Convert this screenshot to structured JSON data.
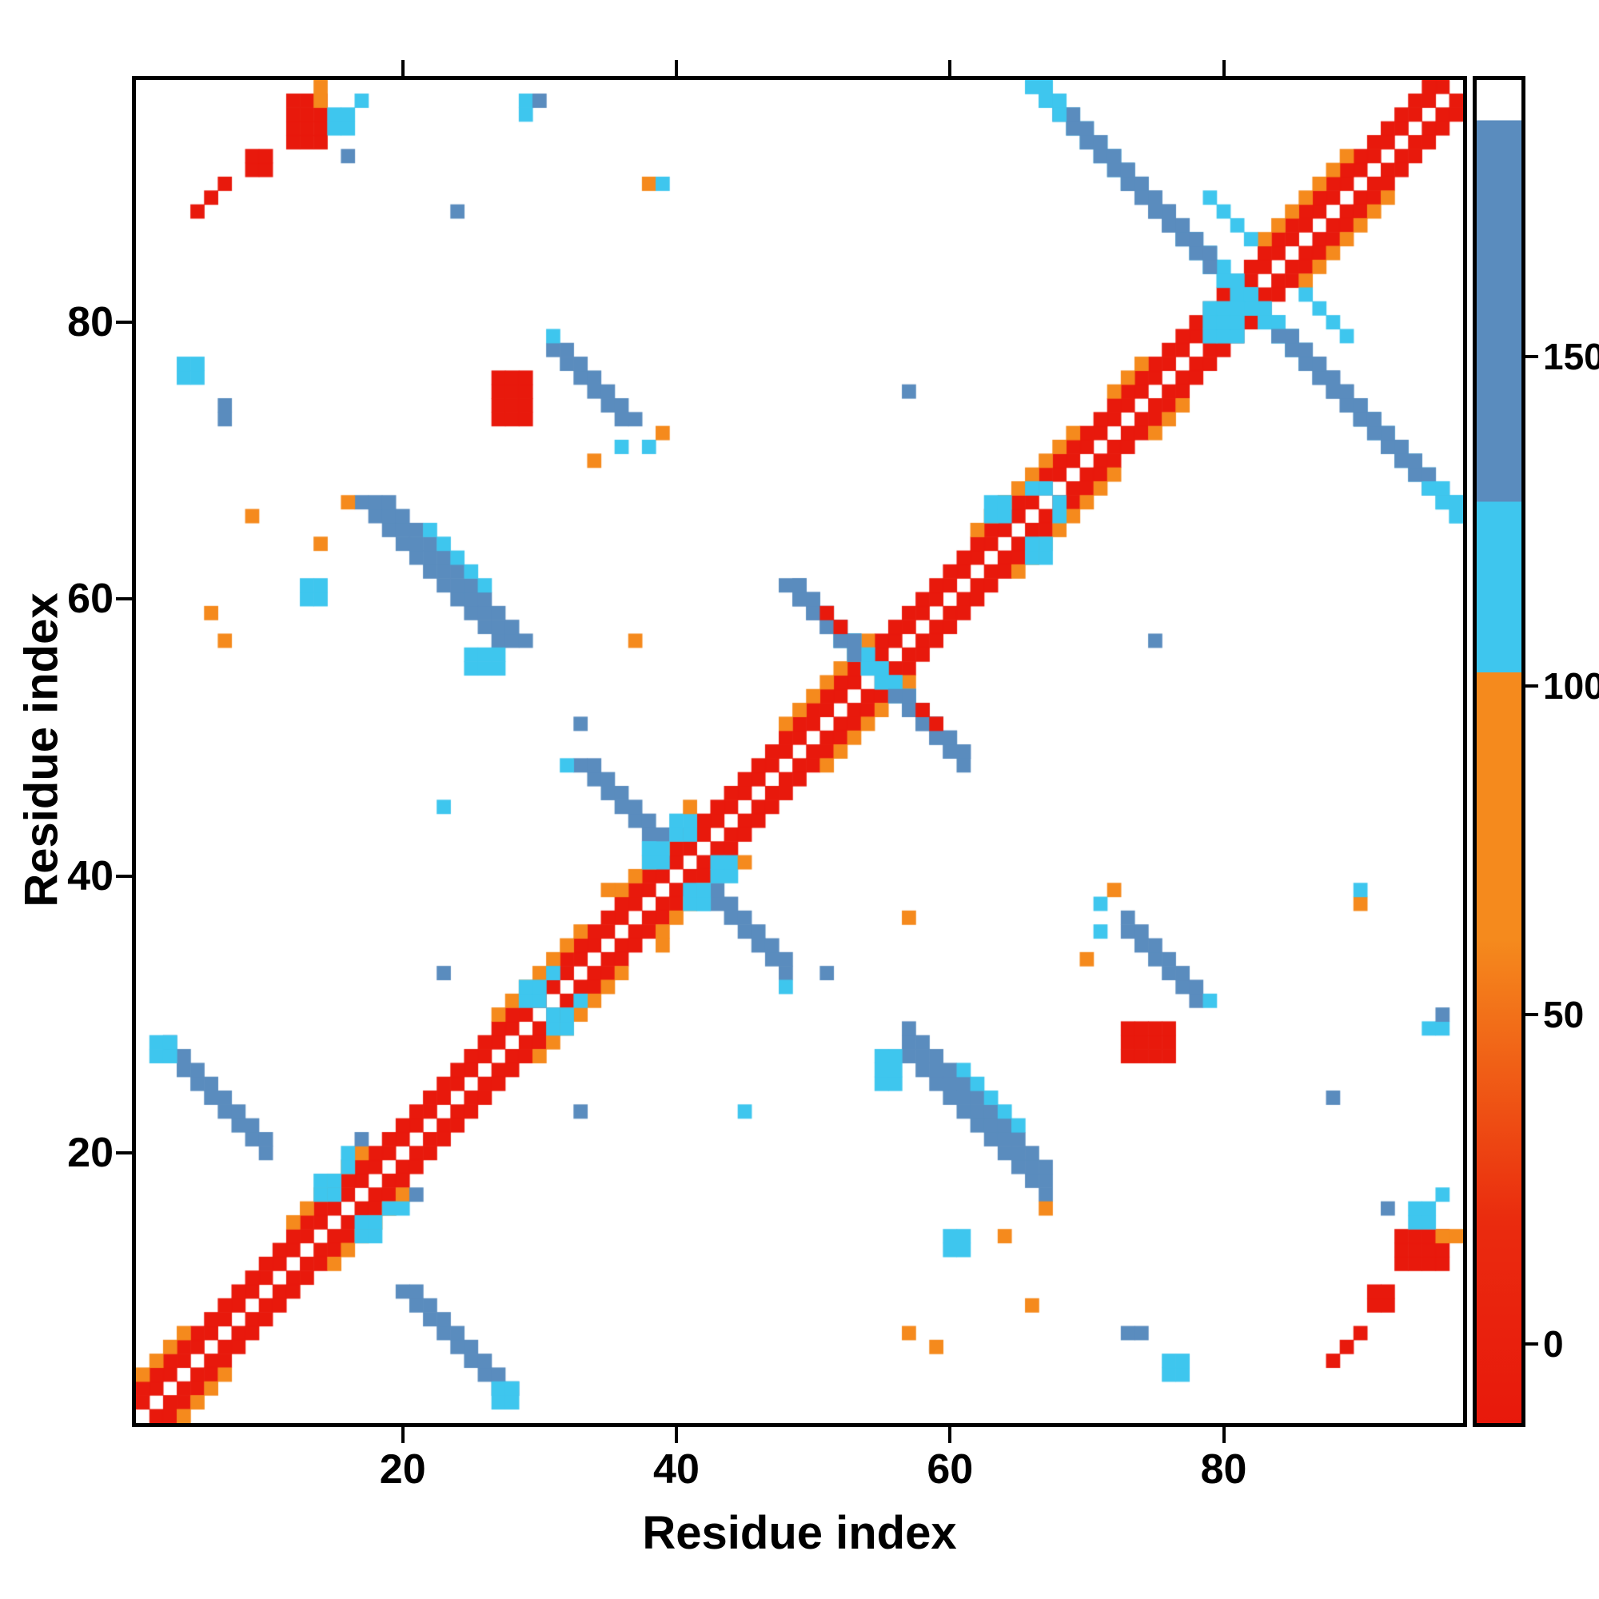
{
  "chart_data": {
    "type": "heatmap",
    "title": "",
    "xlabel": "Residue index",
    "ylabel": "Residue index",
    "x_range": [
      1,
      97
    ],
    "y_range": [
      1,
      97
    ],
    "x_ticks": [
      20,
      40,
      60,
      80
    ],
    "y_ticks": [
      20,
      40,
      60,
      80
    ],
    "grid": false,
    "symmetric": true,
    "background": "#ffffff",
    "palette": {
      "r": "#e8190c",
      "o": "#f58a1d",
      "c": "#3ec6ee",
      "b": "#5a8cbe"
    },
    "category_values": {
      "r": 10,
      "o": 60,
      "c": 112,
      "b": 150
    },
    "colorbar": {
      "min": -12,
      "max": 192,
      "ticks": [
        0,
        50,
        100,
        150
      ],
      "gradient_stops": [
        [
          "#e8190c",
          0
        ],
        [
          "#ea2b0e",
          15
        ],
        [
          "#f58a1d",
          36
        ],
        [
          "#f58a1d",
          55.9
        ],
        [
          "#3ec6ee",
          55.9
        ],
        [
          "#3ec6ee",
          68.6
        ],
        [
          "#5a8cbe",
          68.6
        ],
        [
          "#5a8cbe",
          97.0
        ],
        [
          "#ffffff",
          97.0
        ],
        [
          "#ffffff",
          100
        ]
      ]
    },
    "features": [
      {
        "t": "d",
        "x": 1,
        "y": 2,
        "l": 96,
        "c": "r"
      },
      {
        "t": "d",
        "x": 1,
        "y": 3,
        "l": 95,
        "c": "r"
      },
      {
        "t": "d",
        "x": 1,
        "y": 4,
        "l": 4,
        "c": "o"
      },
      {
        "t": "d",
        "x": 12,
        "y": 15,
        "l": 6,
        "c": "o"
      },
      {
        "t": "d",
        "x": 27,
        "y": 30,
        "l": 7,
        "c": "o"
      },
      {
        "t": "d",
        "x": 36,
        "y": 39,
        "l": 4,
        "c": "o"
      },
      {
        "t": "d",
        "x": 48,
        "y": 51,
        "l": 7,
        "c": "o"
      },
      {
        "t": "d",
        "x": 62,
        "y": 65,
        "l": 8,
        "c": "o"
      },
      {
        "t": "d",
        "x": 72,
        "y": 75,
        "l": 3,
        "c": "o"
      },
      {
        "t": "d",
        "x": 83,
        "y": 86,
        "l": 7,
        "c": "o"
      },
      {
        "t": "d",
        "x": 5,
        "y": 88,
        "l": 3,
        "c": "r"
      },
      {
        "t": "a",
        "x": 20,
        "y": 10,
        "l": 8,
        "n": 2,
        "c": "b"
      },
      {
        "t": "r",
        "x": 27,
        "y": 2,
        "w": 2,
        "h": 2,
        "c": "c"
      },
      {
        "t": "r",
        "x": 14,
        "y": 17,
        "w": 2,
        "h": 2,
        "c": "c"
      },
      {
        "t": "r",
        "x": 16,
        "y": 19,
        "w": 1,
        "h": 2,
        "c": "c"
      },
      {
        "t": "r",
        "x": 17,
        "y": 21,
        "w": 1,
        "h": 1,
        "c": "b"
      },
      {
        "t": "a",
        "x": 17,
        "y": 67,
        "l": 11,
        "n": 3,
        "c": "b"
      },
      {
        "t": "a",
        "x": 22,
        "y": 65,
        "l": 5,
        "n": 1,
        "c": "c"
      },
      {
        "t": "r",
        "x": 25,
        "y": 55,
        "w": 3,
        "h": 2,
        "c": "c"
      },
      {
        "t": "r",
        "x": 16,
        "y": 67,
        "w": 1,
        "h": 1,
        "c": "o"
      },
      {
        "t": "a",
        "x": 33,
        "y": 48,
        "l": 6,
        "n": 2,
        "c": "b"
      },
      {
        "t": "r",
        "x": 32,
        "y": 48,
        "w": 1,
        "h": 1,
        "c": "c"
      },
      {
        "t": "r",
        "x": 38,
        "y": 42,
        "w": 1,
        "h": 1,
        "c": "c"
      },
      {
        "t": "r",
        "x": 38,
        "y": 41,
        "w": 2,
        "h": 2,
        "c": "c"
      },
      {
        "t": "r",
        "x": 40,
        "y": 43,
        "w": 2,
        "h": 2,
        "c": "c"
      },
      {
        "t": "r",
        "x": 35,
        "y": 39,
        "w": 1,
        "h": 1,
        "c": "o"
      },
      {
        "t": "r",
        "x": 41,
        "y": 45,
        "w": 1,
        "h": 1,
        "c": "o"
      },
      {
        "t": "r",
        "x": 29,
        "y": 31,
        "w": 2,
        "h": 2,
        "c": "c"
      },
      {
        "t": "r",
        "x": 31,
        "y": 33,
        "w": 1,
        "h": 1,
        "c": "c"
      },
      {
        "t": "r",
        "x": 23,
        "y": 33,
        "w": 1,
        "h": 1,
        "c": "b"
      },
      {
        "t": "r",
        "x": 33,
        "y": 51,
        "w": 1,
        "h": 1,
        "c": "b"
      },
      {
        "t": "r",
        "x": 45,
        "y": 23,
        "w": 1,
        "h": 1,
        "c": "c"
      },
      {
        "t": "a",
        "x": 48,
        "y": 61,
        "l": 5,
        "n": 2,
        "c": "b"
      },
      {
        "t": "a",
        "x": 52,
        "y": 57,
        "l": 5,
        "n": 2,
        "c": "c"
      },
      {
        "t": "a",
        "x": 56,
        "y": 53,
        "l": 5,
        "n": 2,
        "c": "b"
      },
      {
        "t": "r",
        "x": 63,
        "y": 66,
        "w": 2,
        "h": 2,
        "c": "c"
      },
      {
        "t": "r",
        "x": 66,
        "y": 68,
        "w": 2,
        "h": 1,
        "c": "c"
      },
      {
        "t": "r",
        "x": 27,
        "y": 73,
        "w": 3,
        "h": 4,
        "c": "r"
      },
      {
        "t": "a",
        "x": 31,
        "y": 78,
        "l": 6,
        "n": 2,
        "c": "b"
      },
      {
        "t": "r",
        "x": 31,
        "y": 79,
        "w": 1,
        "h": 1,
        "c": "c"
      },
      {
        "t": "r",
        "x": 36,
        "y": 71,
        "w": 1,
        "h": 1,
        "c": "c"
      },
      {
        "t": "r",
        "x": 34,
        "y": 70,
        "w": 1,
        "h": 1,
        "c": "o"
      },
      {
        "t": "a",
        "x": 66,
        "y": 97,
        "l": 8,
        "n": 2,
        "c": "c"
      },
      {
        "t": "a",
        "x": 73,
        "y": 90,
        "l": 5,
        "n": 2,
        "c": "b"
      },
      {
        "t": "a",
        "x": 77,
        "y": 86,
        "l": 5,
        "n": 2,
        "c": "c"
      },
      {
        "t": "a",
        "x": 81,
        "y": 82,
        "l": 4,
        "n": 2,
        "c": "c"
      },
      {
        "t": "a",
        "x": 84,
        "y": 79,
        "l": 7,
        "n": 2,
        "c": "b"
      },
      {
        "t": "a",
        "x": 90,
        "y": 73,
        "l": 6,
        "n": 2,
        "c": "b"
      },
      {
        "t": "a",
        "x": 95,
        "y": 68,
        "l": 3,
        "n": 2,
        "c": "c"
      },
      {
        "t": "r",
        "x": 79,
        "y": 79,
        "w": 3,
        "h": 3,
        "c": "c"
      },
      {
        "t": "a",
        "x": 79,
        "y": 89,
        "l": 4,
        "n": 1,
        "c": "c"
      },
      {
        "t": "r",
        "x": 12,
        "y": 93,
        "w": 3,
        "h": 4,
        "c": "r"
      },
      {
        "t": "r",
        "x": 14,
        "y": 96,
        "w": 1,
        "h": 2,
        "c": "o"
      },
      {
        "t": "r",
        "x": 15,
        "y": 94,
        "w": 2,
        "h": 2,
        "c": "c"
      },
      {
        "t": "r",
        "x": 17,
        "y": 96,
        "w": 1,
        "h": 1,
        "c": "c"
      },
      {
        "t": "r",
        "x": 16,
        "y": 92,
        "w": 1,
        "h": 1,
        "c": "b"
      },
      {
        "t": "r",
        "x": 91,
        "y": 9,
        "w": 2,
        "h": 2,
        "c": "r"
      },
      {
        "t": "r",
        "x": 4,
        "y": 76,
        "w": 2,
        "h": 2,
        "c": "c"
      },
      {
        "t": "r",
        "x": 7,
        "y": 73,
        "w": 1,
        "h": 2,
        "c": "b"
      },
      {
        "t": "r",
        "x": 6,
        "y": 59,
        "w": 1,
        "h": 1,
        "c": "o"
      },
      {
        "t": "r",
        "x": 7,
        "y": 57,
        "w": 1,
        "h": 1,
        "c": "o"
      },
      {
        "t": "r",
        "x": 38,
        "y": 90,
        "w": 1,
        "h": 1,
        "c": "o"
      },
      {
        "t": "r",
        "x": 39,
        "y": 90,
        "w": 1,
        "h": 1,
        "c": "c"
      },
      {
        "t": "r",
        "x": 57,
        "y": 75,
        "w": 1,
        "h": 1,
        "c": "b"
      },
      {
        "t": "r",
        "x": 51,
        "y": 59,
        "w": 1,
        "h": 1,
        "c": "r"
      },
      {
        "t": "r",
        "x": 52,
        "y": 58,
        "w": 1,
        "h": 1,
        "c": "r"
      },
      {
        "t": "r",
        "x": 57,
        "y": 37,
        "w": 1,
        "h": 1,
        "c": "o"
      },
      {
        "t": "r",
        "x": 71,
        "y": 38,
        "w": 1,
        "h": 1,
        "c": "c"
      },
      {
        "t": "r",
        "x": 72,
        "y": 39,
        "w": 1,
        "h": 1,
        "c": "o"
      },
      {
        "t": "r",
        "x": 24,
        "y": 88,
        "w": 1,
        "h": 1,
        "c": "b"
      },
      {
        "t": "r",
        "x": 66,
        "y": 9,
        "w": 1,
        "h": 1,
        "c": "o"
      },
      {
        "t": "r",
        "x": 60,
        "y": 13,
        "w": 2,
        "h": 2,
        "c": "c"
      },
      {
        "t": "r",
        "x": 64,
        "y": 14,
        "w": 1,
        "h": 1,
        "c": "o"
      },
      {
        "t": "r",
        "x": 29,
        "y": 95,
        "w": 1,
        "h": 2,
        "c": "c"
      },
      {
        "t": "r",
        "x": 30,
        "y": 96,
        "w": 1,
        "h": 1,
        "c": "b"
      }
    ]
  }
}
